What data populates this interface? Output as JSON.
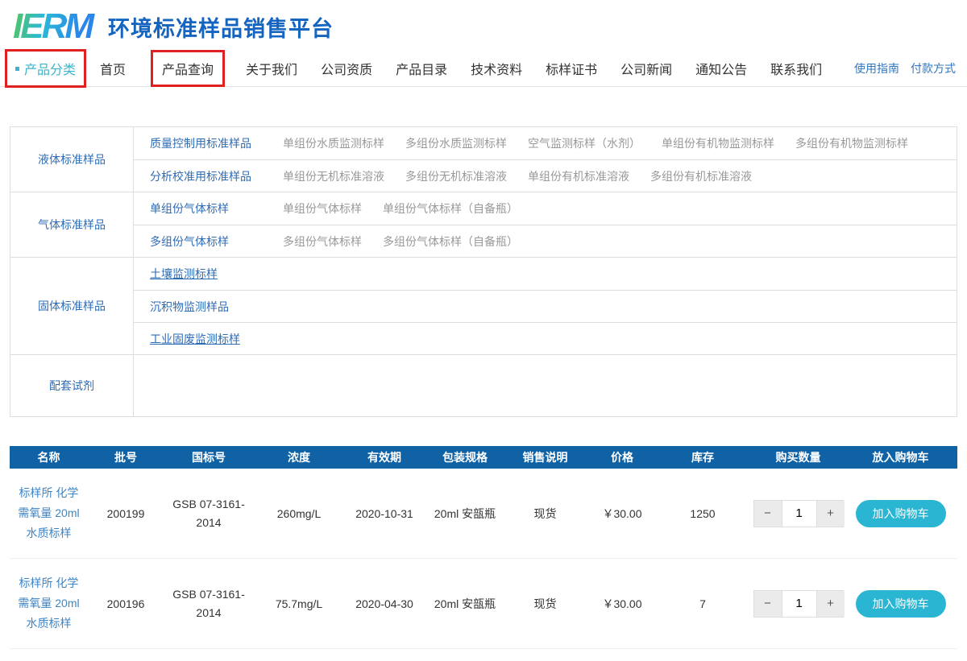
{
  "header": {
    "logo_text": "IERM",
    "site_title": "环境标准样品销售平台"
  },
  "nav": {
    "items": [
      {
        "label": "产品分类",
        "active": true,
        "boxed": true
      },
      {
        "label": "首页",
        "active": false,
        "boxed": false
      },
      {
        "label": "产品查询",
        "active": false,
        "boxed": true
      },
      {
        "label": "关于我们",
        "active": false,
        "boxed": false
      },
      {
        "label": "公司资质",
        "active": false,
        "boxed": false
      },
      {
        "label": "产品目录",
        "active": false,
        "boxed": false
      },
      {
        "label": "技术资料",
        "active": false,
        "boxed": false
      },
      {
        "label": "标样证书",
        "active": false,
        "boxed": false
      },
      {
        "label": "公司新闻",
        "active": false,
        "boxed": false
      },
      {
        "label": "通知公告",
        "active": false,
        "boxed": false
      },
      {
        "label": "联系我们",
        "active": false,
        "boxed": false
      }
    ],
    "utility_links": [
      "使用指南",
      "付款方式"
    ]
  },
  "category_table": {
    "groups": [
      {
        "label": "液体标准样品",
        "rows": [
          {
            "main": "质量控制用标准样品",
            "underline": false,
            "links": [
              "单组份水质监测标样",
              "多组份水质监测标样",
              "空气监测标样（水剂）",
              "单组份有机物监测标样",
              "多组份有机物监测标样"
            ]
          },
          {
            "main": "分析校准用标准样品",
            "underline": false,
            "links": [
              "单组份无机标准溶液",
              "多组份无机标准溶液",
              "单组份有机标准溶液",
              "多组份有机标准溶液"
            ]
          }
        ]
      },
      {
        "label": "气体标准样品",
        "rows": [
          {
            "main": "单组份气体标样",
            "underline": false,
            "links": [
              "单组份气体标样",
              "单组份气体标样（自备瓶）"
            ]
          },
          {
            "main": "多组份气体标样",
            "underline": false,
            "links": [
              "多组份气体标样",
              "多组份气体标样（自备瓶）"
            ]
          }
        ]
      },
      {
        "label": "固体标准样品",
        "rows": [
          {
            "main": "土壤监测标样",
            "underline": true,
            "links": []
          },
          {
            "main": "沉积物监测样品",
            "underline": false,
            "links": []
          },
          {
            "main": "工业固废监测标样",
            "underline": true,
            "links": []
          }
        ]
      },
      {
        "label": "配套试剂",
        "reagent": true,
        "rows": [
          {
            "main": "",
            "underline": false,
            "links": []
          }
        ]
      }
    ]
  },
  "product_table": {
    "columns": [
      "名称",
      "批号",
      "国标号",
      "浓度",
      "有效期",
      "包装规格",
      "销售说明",
      "价格",
      "库存",
      "购买数量",
      "放入购物车"
    ],
    "rows": [
      {
        "name": "标样所 化学需氧量 20ml 水质标样",
        "batch": "200199",
        "gsb": "GSB 07-3161-2014",
        "concentration": "260mg/L",
        "expiry": "2020-10-31",
        "package": "20ml 安瓿瓶",
        "sale_note": "现货",
        "price": "￥30.00",
        "stock": "1250",
        "qty": "1"
      },
      {
        "name": "标样所 化学需氧量 20ml 水质标样",
        "batch": "200196",
        "gsb": "GSB 07-3161-2014",
        "concentration": "75.7mg/L",
        "expiry": "2020-04-30",
        "package": "20ml 安瓿瓶",
        "sale_note": "现货",
        "price": "￥30.00",
        "stock": "7",
        "qty": "1"
      }
    ],
    "stepper": {
      "minus": "−",
      "plus": "+"
    },
    "add_to_cart_label": "加入购物车"
  },
  "colors": {
    "table_header_blue": "#1062a5",
    "accent_teal": "#2ab5d3",
    "nav_active_teal": "#3cb4cb",
    "link_blue": "#2e6cb5",
    "name_link_blue": "#3d85c6",
    "highlight_red": "#e02121",
    "muted_link_gray": "#999999",
    "title_blue": "#1565c0"
  }
}
